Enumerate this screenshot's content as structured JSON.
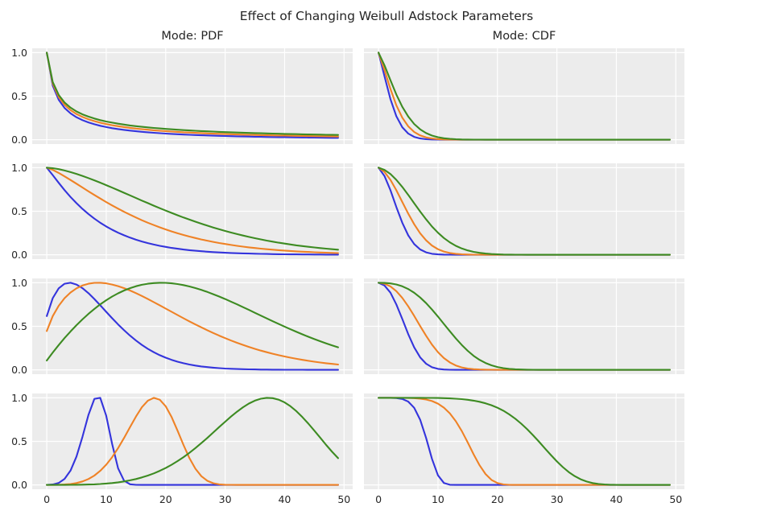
{
  "chart_data": {
    "type": "line",
    "title": "Effect of Changing Weibull Adstock Parameters",
    "column_titles": [
      "Mode: PDF",
      "Mode: CDF"
    ],
    "rows": 4,
    "cols": 2,
    "x_range": [
      0,
      49
    ],
    "xlim": [
      -2.45,
      51.45
    ],
    "ylim": [
      -0.05,
      1.05
    ],
    "x_tick_values": [
      0,
      10,
      20,
      30,
      40,
      50
    ],
    "x_tick_labels": [
      "0",
      "10",
      "20",
      "30",
      "40",
      "50"
    ],
    "y_tick_values": [
      0.0,
      0.5,
      1.0
    ],
    "y_tick_labels": [
      "0.0",
      "0.5",
      "1.0"
    ],
    "grid": true,
    "legend": "none",
    "colors": {
      "axes_background": "#ececec",
      "grid": "#ffffff",
      "text": "#262626",
      "blue": "#3434dc",
      "orange": "#ef8226",
      "green": "#3d8b22"
    },
    "line_width": 2.1,
    "panels": [
      {
        "row": 0,
        "col": 0,
        "mode": "PDF",
        "series": [
          {
            "color": "blue",
            "curve": "weibull_pdf",
            "shape": 0.5,
            "scale": 10
          },
          {
            "color": "orange",
            "curve": "weibull_pdf",
            "shape": 0.5,
            "scale": 20
          },
          {
            "color": "green",
            "curve": "weibull_pdf",
            "shape": 0.5,
            "scale": 40
          }
        ]
      },
      {
        "row": 0,
        "col": 1,
        "mode": "CDF",
        "series": [
          {
            "color": "blue",
            "curve": "weibull_cdf_adstock",
            "shape": 0.5,
            "scale": 10
          },
          {
            "color": "orange",
            "curve": "weibull_cdf_adstock",
            "shape": 0.5,
            "scale": 20
          },
          {
            "color": "green",
            "curve": "weibull_cdf_adstock",
            "shape": 0.5,
            "scale": 40
          }
        ]
      },
      {
        "row": 1,
        "col": 0,
        "mode": "PDF",
        "series": [
          {
            "color": "blue",
            "curve": "weibull_survival",
            "shape": 1.1,
            "scale": 9
          },
          {
            "color": "orange",
            "curve": "weibull_survival",
            "shape": 1.3,
            "scale": 17
          },
          {
            "color": "green",
            "curve": "weibull_survival",
            "shape": 1.6,
            "scale": 25.5
          }
        ]
      },
      {
        "row": 1,
        "col": 1,
        "mode": "CDF",
        "series": [
          {
            "color": "blue",
            "curve": "weibull_cdf_adstock",
            "shape": 1.0,
            "scale": 10
          },
          {
            "color": "orange",
            "curve": "weibull_cdf_adstock",
            "shape": 1.0,
            "scale": 20
          },
          {
            "color": "green",
            "curve": "weibull_cdf_adstock",
            "shape": 1.0,
            "scale": 40
          }
        ]
      },
      {
        "row": 2,
        "col": 0,
        "mode": "PDF",
        "series": [
          {
            "color": "blue",
            "curve": "weibull_pdf",
            "shape": 1.5,
            "scale": 10
          },
          {
            "color": "orange",
            "curve": "weibull_pdf",
            "shape": 1.5,
            "scale": 20
          },
          {
            "color": "green",
            "curve": "weibull_pdf",
            "shape": 1.9,
            "scale": 30
          }
        ]
      },
      {
        "row": 2,
        "col": 1,
        "mode": "CDF",
        "series": [
          {
            "color": "blue",
            "curve": "weibull_cdf_adstock",
            "shape": 1.5,
            "scale": 10
          },
          {
            "color": "orange",
            "curve": "weibull_cdf_adstock",
            "shape": 1.5,
            "scale": 20
          },
          {
            "color": "green",
            "curve": "weibull_cdf_adstock",
            "shape": 1.9,
            "scale": 30
          }
        ]
      },
      {
        "row": 3,
        "col": 0,
        "mode": "PDF",
        "series": [
          {
            "color": "blue",
            "curve": "weibull_pdf",
            "shape": 5.0,
            "scale": 10
          },
          {
            "color": "orange",
            "curve": "weibull_pdf",
            "shape": 5.0,
            "scale": 20
          },
          {
            "color": "green",
            "curve": "weibull_pdf",
            "shape": 5.0,
            "scale": 40
          }
        ]
      },
      {
        "row": 3,
        "col": 1,
        "mode": "CDF",
        "series": [
          {
            "color": "blue",
            "curve": "weibull_cdf_adstock",
            "shape": 5.0,
            "scale": 10
          },
          {
            "color": "orange",
            "curve": "weibull_cdf_adstock",
            "shape": 5.0,
            "scale": 20
          },
          {
            "color": "green",
            "curve": "weibull_cdf_adstock",
            "shape": 5.0,
            "scale": 40
          }
        ]
      }
    ]
  }
}
